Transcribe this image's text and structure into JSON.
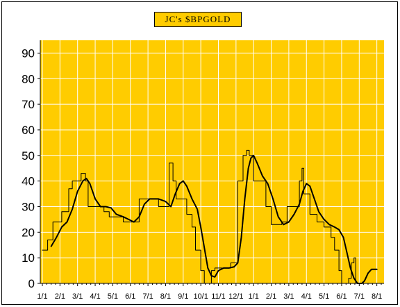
{
  "colors": {
    "plot_bg": "#ffcc00",
    "grid": "#ffffff",
    "series_line": "#000000",
    "frame": "#000000",
    "title_bg": "#ffcc00"
  },
  "chart_data": {
    "type": "line",
    "title": "JC's $BPGOLD",
    "ylim": [
      0,
      95
    ],
    "yticks": [
      0,
      10,
      20,
      30,
      40,
      50,
      60,
      70,
      80,
      90
    ],
    "xlabels": [
      "1/1",
      "2/1",
      "3/1",
      "4/1",
      "5/1",
      "6/1",
      "7/1",
      "8/1",
      "9/1",
      "10/1",
      "11/1",
      "12/1",
      "1/1",
      "2/1",
      "3/1",
      "4/1",
      "5/1",
      "6/1",
      "7/1",
      "8/1"
    ],
    "grid": true,
    "x_units": "months since first tick (0 = 1/1)",
    "series": [
      {
        "name": "",
        "style": "step-thin",
        "points": [
          [
            0,
            13
          ],
          [
            0.3,
            13
          ],
          [
            0.3,
            17
          ],
          [
            0.6,
            17
          ],
          [
            0.6,
            24
          ],
          [
            1.1,
            24
          ],
          [
            1.1,
            28
          ],
          [
            1.5,
            28
          ],
          [
            1.5,
            37
          ],
          [
            1.7,
            37
          ],
          [
            1.7,
            40
          ],
          [
            2.2,
            40
          ],
          [
            2.2,
            43
          ],
          [
            2.45,
            43
          ],
          [
            2.45,
            40
          ],
          [
            2.6,
            40
          ],
          [
            2.6,
            30
          ],
          [
            3.5,
            30
          ],
          [
            3.5,
            28
          ],
          [
            3.8,
            28
          ],
          [
            3.8,
            26
          ],
          [
            4.6,
            26
          ],
          [
            4.6,
            24
          ],
          [
            5.5,
            24
          ],
          [
            5.5,
            33
          ],
          [
            6.6,
            33
          ],
          [
            6.6,
            30
          ],
          [
            7.2,
            30
          ],
          [
            7.2,
            47
          ],
          [
            7.42,
            47
          ],
          [
            7.42,
            40
          ],
          [
            7.6,
            40
          ],
          [
            7.6,
            33
          ],
          [
            8.2,
            33
          ],
          [
            8.2,
            27
          ],
          [
            8.5,
            27
          ],
          [
            8.5,
            22
          ],
          [
            8.7,
            22
          ],
          [
            8.7,
            13
          ],
          [
            9.0,
            13
          ],
          [
            9.0,
            5
          ],
          [
            9.2,
            5
          ],
          [
            9.2,
            0
          ],
          [
            9.6,
            0
          ],
          [
            9.6,
            5
          ],
          [
            9.8,
            5
          ],
          [
            9.8,
            6
          ],
          [
            10.7,
            6
          ],
          [
            10.7,
            8
          ],
          [
            11.1,
            8
          ],
          [
            11.1,
            40
          ],
          [
            11.4,
            40
          ],
          [
            11.4,
            50
          ],
          [
            11.6,
            50
          ],
          [
            11.6,
            52
          ],
          [
            11.75,
            52
          ],
          [
            11.75,
            50
          ],
          [
            12.0,
            50
          ],
          [
            12.0,
            40
          ],
          [
            12.7,
            40
          ],
          [
            12.7,
            30
          ],
          [
            13.0,
            30
          ],
          [
            13.0,
            23
          ],
          [
            13.6,
            23
          ],
          [
            13.6,
            24
          ],
          [
            13.9,
            24
          ],
          [
            13.9,
            30
          ],
          [
            14.6,
            30
          ],
          [
            14.6,
            40
          ],
          [
            14.75,
            40
          ],
          [
            14.75,
            45
          ],
          [
            14.85,
            45
          ],
          [
            14.85,
            35
          ],
          [
            15.2,
            35
          ],
          [
            15.2,
            27
          ],
          [
            15.6,
            27
          ],
          [
            15.6,
            24
          ],
          [
            16.0,
            24
          ],
          [
            16.0,
            22
          ],
          [
            16.4,
            22
          ],
          [
            16.4,
            18
          ],
          [
            16.6,
            18
          ],
          [
            16.6,
            13
          ],
          [
            16.85,
            13
          ],
          [
            16.85,
            5
          ],
          [
            17.0,
            5
          ],
          [
            17.0,
            0
          ],
          [
            17.4,
            0
          ],
          [
            17.4,
            2
          ],
          [
            17.55,
            2
          ],
          [
            17.55,
            8
          ],
          [
            17.7,
            8
          ],
          [
            17.7,
            10
          ],
          [
            17.8,
            10
          ],
          [
            17.8,
            0
          ]
        ]
      },
      {
        "name": "",
        "style": "smooth-thick",
        "points": [
          [
            0.5,
            14.5
          ],
          [
            0.8,
            18
          ],
          [
            1.1,
            22
          ],
          [
            1.4,
            24
          ],
          [
            1.7,
            29
          ],
          [
            2.0,
            36
          ],
          [
            2.3,
            40
          ],
          [
            2.5,
            41
          ],
          [
            2.7,
            39
          ],
          [
            3.0,
            33
          ],
          [
            3.3,
            30
          ],
          [
            3.6,
            30
          ],
          [
            3.9,
            29.5
          ],
          [
            4.2,
            27
          ],
          [
            4.6,
            26
          ],
          [
            4.9,
            25
          ],
          [
            5.2,
            24
          ],
          [
            5.5,
            26
          ],
          [
            5.8,
            31
          ],
          [
            6.1,
            33
          ],
          [
            6.6,
            33
          ],
          [
            7.0,
            32
          ],
          [
            7.3,
            30
          ],
          [
            7.55,
            35
          ],
          [
            7.8,
            39
          ],
          [
            8.0,
            40
          ],
          [
            8.2,
            38
          ],
          [
            8.5,
            33
          ],
          [
            8.8,
            29
          ],
          [
            9.0,
            22
          ],
          [
            9.2,
            14
          ],
          [
            9.4,
            6
          ],
          [
            9.6,
            3
          ],
          [
            9.8,
            2.5
          ],
          [
            10.0,
            5
          ],
          [
            10.3,
            6
          ],
          [
            10.6,
            6
          ],
          [
            10.9,
            6.5
          ],
          [
            11.1,
            8
          ],
          [
            11.3,
            18
          ],
          [
            11.5,
            33
          ],
          [
            11.7,
            45
          ],
          [
            11.85,
            49
          ],
          [
            12.0,
            50
          ],
          [
            12.2,
            47
          ],
          [
            12.5,
            42
          ],
          [
            12.8,
            39
          ],
          [
            13.1,
            33
          ],
          [
            13.4,
            26
          ],
          [
            13.7,
            23
          ],
          [
            14.0,
            24
          ],
          [
            14.3,
            27
          ],
          [
            14.6,
            31
          ],
          [
            14.8,
            36
          ],
          [
            15.0,
            39
          ],
          [
            15.2,
            38
          ],
          [
            15.45,
            33
          ],
          [
            15.7,
            28
          ],
          [
            16.0,
            25
          ],
          [
            16.3,
            23
          ],
          [
            16.6,
            22
          ],
          [
            16.85,
            21
          ],
          [
            17.1,
            18
          ],
          [
            17.3,
            12
          ],
          [
            17.5,
            6
          ],
          [
            17.7,
            2
          ],
          [
            17.9,
            0
          ],
          [
            18.15,
            0
          ],
          [
            18.3,
            1
          ],
          [
            18.5,
            4
          ],
          [
            18.7,
            5.5
          ],
          [
            19.0,
            5.5
          ]
        ]
      }
    ]
  }
}
